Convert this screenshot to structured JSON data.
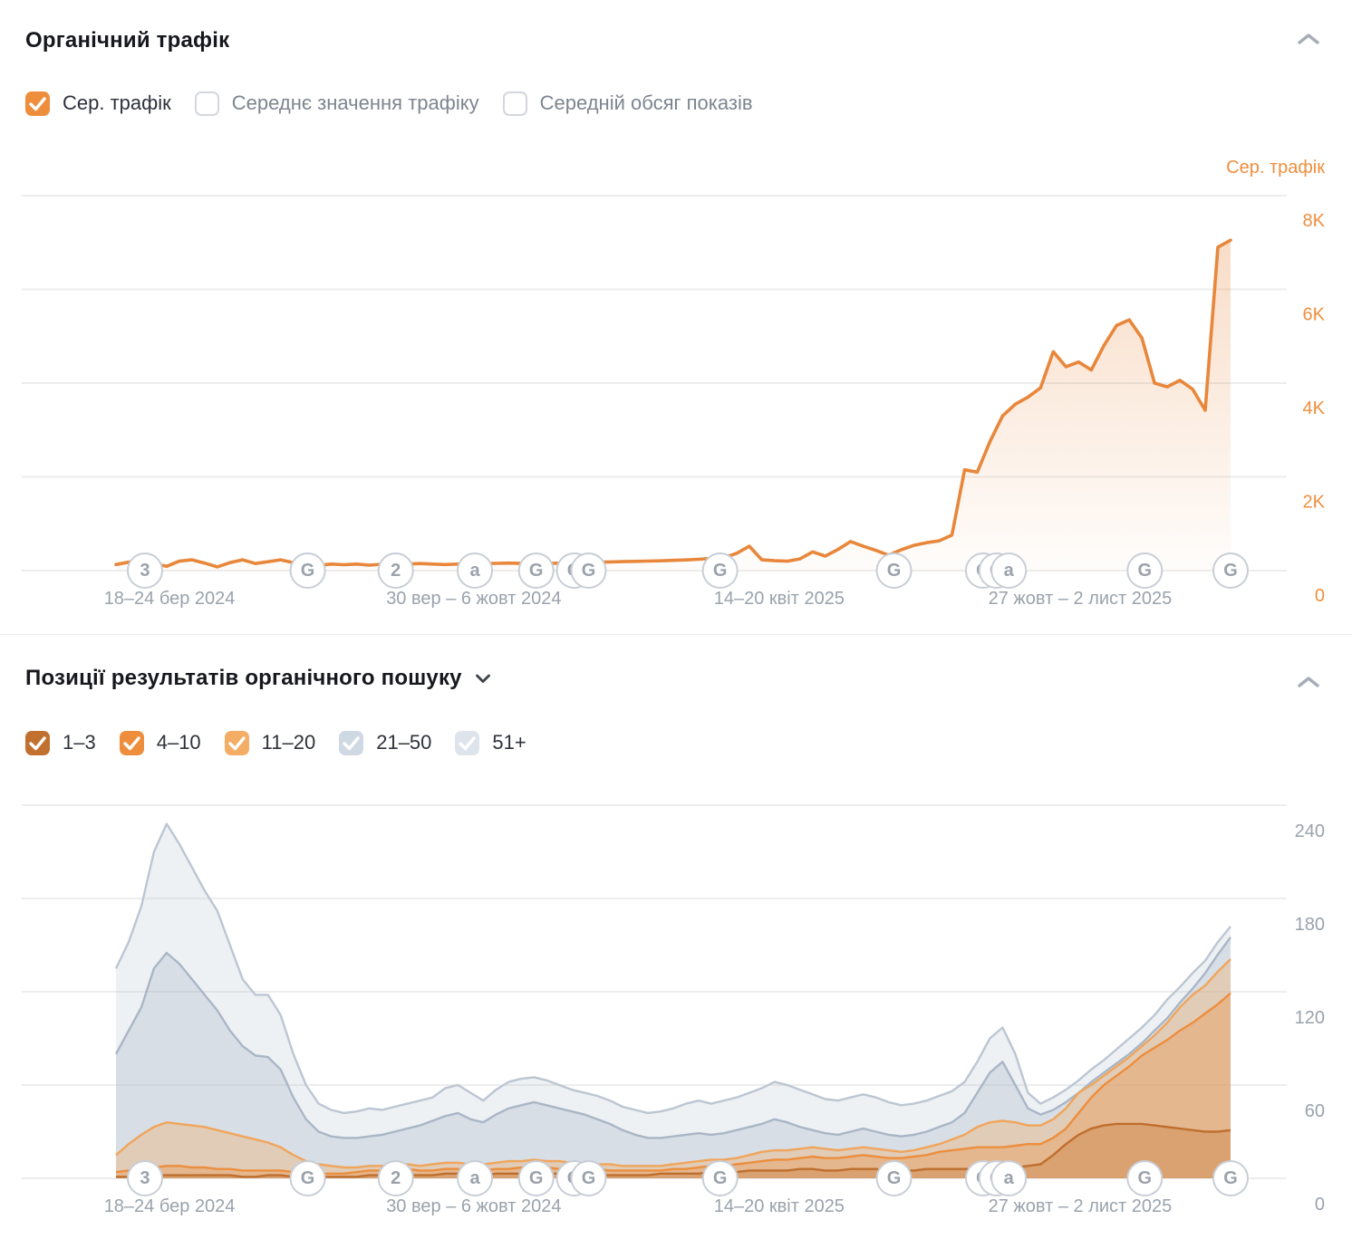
{
  "traffic_panel": {
    "title": "Органічний трафік",
    "axis_title": "Сер. трафік",
    "legend": [
      {
        "label": "Сер. трафік",
        "checked": true,
        "color": "#ee8e3d"
      },
      {
        "label": "Середнє значення трафіку",
        "checked": false
      },
      {
        "label": "Середній обсяг показів",
        "checked": false
      }
    ]
  },
  "positions_panel": {
    "title": "Позиції результатів органічного пошуку",
    "legend": [
      {
        "label": "1–3",
        "checked": true,
        "color": "#c1702f"
      },
      {
        "label": "4–10",
        "checked": true,
        "color": "#ee8e3d"
      },
      {
        "label": "11–20",
        "checked": true,
        "color": "#f4ad64"
      },
      {
        "label": "21–50",
        "checked": true,
        "color": "#cfd9e4"
      },
      {
        "label": "51+",
        "checked": true,
        "color": "#dee4ec"
      }
    ]
  },
  "markers": [
    {
      "f": 0.026,
      "t": "3"
    },
    {
      "f": 0.172,
      "t": "G"
    },
    {
      "f": 0.251,
      "t": "2"
    },
    {
      "f": 0.322,
      "t": "a"
    },
    {
      "f": 0.377,
      "t": "G"
    },
    {
      "f": 0.411,
      "t": "G"
    },
    {
      "f": 0.424,
      "t": "G"
    },
    {
      "f": 0.542,
      "t": "G"
    },
    {
      "f": 0.698,
      "t": "G"
    },
    {
      "f": 0.778,
      "t": "G"
    },
    {
      "f": 0.79,
      "t": "G"
    },
    {
      "f": 0.801,
      "t": "a"
    },
    {
      "f": 0.923,
      "t": "G"
    },
    {
      "f": 1.0,
      "t": "G"
    }
  ],
  "chart_data": [
    {
      "id": "organic-traffic",
      "type": "area",
      "title": "Органічний трафік",
      "ylabel": "Сер. трафік",
      "y_ticks": [
        "8K",
        "6K",
        "4K",
        "2K",
        "0"
      ],
      "ylim": [
        0,
        8000
      ],
      "grid": true,
      "x_labels": [
        {
          "f": 0.048,
          "t": "18–24 бер 2024"
        },
        {
          "f": 0.321,
          "t": "30 вер – 6 жовт 2024"
        },
        {
          "f": 0.595,
          "t": "14–20 квіт 2025"
        },
        {
          "f": 0.865,
          "t": "27 жовт – 2 лист 2025"
        }
      ],
      "series": [
        {
          "name": "Сер. трафік",
          "color": "#e8873b",
          "values": [
            130,
            180,
            220,
            150,
            90,
            200,
            230,
            160,
            80,
            170,
            230,
            150,
            190,
            230,
            170,
            120,
            110,
            140,
            125,
            140,
            115,
            135,
            120,
            140,
            150,
            140,
            130,
            140,
            155,
            148,
            155,
            160,
            152,
            165,
            152,
            158,
            165,
            172,
            178,
            186,
            192,
            198,
            202,
            208,
            218,
            228,
            242,
            260,
            275,
            370,
            520,
            230,
            210,
            200,
            250,
            400,
            310,
            450,
            620,
            520,
            430,
            330,
            445,
            540,
            595,
            635,
            760,
            2150,
            2100,
            2750,
            3300,
            3550,
            3700,
            3900,
            4670,
            4350,
            4450,
            4280,
            4800,
            5230,
            5350,
            4960,
            4000,
            3920,
            4060,
            3870,
            3420,
            6900,
            7050
          ]
        }
      ]
    },
    {
      "id": "organic-positions",
      "type": "stacked-area",
      "title": "Позиції результатів органічного пошуку",
      "y_ticks": [
        "240",
        "180",
        "120",
        "60",
        "0"
      ],
      "ylim": [
        0,
        240
      ],
      "grid": true,
      "values_are_cumulative": true,
      "x_labels": [
        {
          "f": 0.048,
          "t": "18–24 бер 2024"
        },
        {
          "f": 0.321,
          "t": "30 вер – 6 жовт 2024"
        },
        {
          "f": 0.595,
          "t": "14–20 квіт 2025"
        },
        {
          "f": 0.865,
          "t": "27 жовт – 2 лист 2025"
        }
      ],
      "series": [
        {
          "name": "51+",
          "line": "#bcc6d3",
          "fill": "rgba(176,189,205,0.22)",
          "values": [
            135,
            152,
            175,
            210,
            228,
            215,
            200,
            185,
            172,
            150,
            128,
            118,
            118,
            105,
            80,
            60,
            48,
            44,
            42,
            43,
            45,
            44,
            46,
            48,
            50,
            52,
            58,
            60,
            55,
            50,
            57,
            62,
            64,
            65,
            63,
            60,
            57,
            55,
            53,
            50,
            46,
            44,
            42,
            43,
            45,
            48,
            50,
            48,
            50,
            52,
            55,
            58,
            62,
            60,
            57,
            54,
            51,
            50,
            52,
            54,
            52,
            49,
            47,
            48,
            50,
            53,
            56,
            62,
            75,
            90,
            97,
            80,
            55,
            48,
            52,
            57,
            63,
            70,
            76,
            83,
            90,
            97,
            105,
            115,
            123,
            132,
            140,
            152,
            162
          ]
        },
        {
          "name": "21–50",
          "line": "#a9b6c6",
          "fill": "rgba(150,166,186,0.25)",
          "values": [
            80,
            95,
            110,
            135,
            145,
            138,
            128,
            118,
            108,
            95,
            85,
            79,
            78,
            70,
            52,
            38,
            30,
            27,
            26,
            26,
            27,
            28,
            30,
            32,
            34,
            37,
            40,
            42,
            38,
            36,
            41,
            45,
            47,
            49,
            47,
            45,
            43,
            41,
            38,
            35,
            31,
            28,
            26,
            26,
            27,
            28,
            29,
            28,
            29,
            31,
            33,
            35,
            38,
            36,
            33,
            31,
            29,
            28,
            30,
            32,
            30,
            28,
            27,
            28,
            30,
            33,
            36,
            42,
            55,
            68,
            75,
            60,
            45,
            41,
            44,
            49,
            55,
            62,
            68,
            74,
            80,
            87,
            95,
            103,
            113,
            122,
            132,
            144,
            155
          ]
        },
        {
          "name": "11–20",
          "line": "#f0a55b",
          "fill": "rgba(243,171,98,0.35)",
          "values": [
            15,
            22,
            28,
            33,
            36,
            35,
            34,
            33,
            31,
            29,
            27,
            25,
            23,
            20,
            15,
            11,
            9,
            8,
            7,
            7,
            8,
            8,
            9,
            9,
            8,
            9,
            10,
            10,
            9,
            9,
            10,
            11,
            11,
            12,
            11,
            11,
            10,
            10,
            9,
            9,
            8,
            8,
            8,
            8,
            9,
            10,
            11,
            12,
            12,
            13,
            15,
            17,
            18,
            18,
            19,
            20,
            19,
            18,
            19,
            20,
            19,
            18,
            17,
            18,
            20,
            22,
            25,
            28,
            33,
            36,
            37,
            36,
            34,
            34,
            38,
            45,
            55,
            60,
            66,
            72,
            78,
            85,
            92,
            100,
            110,
            118,
            124,
            133,
            141
          ]
        },
        {
          "name": "4–10",
          "line": "#ec8e3d",
          "fill": "rgba(238,141,60,0.33)",
          "values": [
            4,
            5,
            6,
            7,
            8,
            8,
            7,
            7,
            6,
            6,
            5,
            5,
            5,
            5,
            4,
            4,
            3,
            3,
            3,
            4,
            5,
            5,
            6,
            6,
            5,
            5,
            6,
            6,
            5,
            5,
            6,
            6,
            7,
            7,
            7,
            6,
            6,
            6,
            6,
            5,
            5,
            5,
            5,
            5,
            6,
            6,
            7,
            8,
            8,
            9,
            10,
            11,
            12,
            12,
            13,
            14,
            13,
            13,
            14,
            15,
            14,
            13,
            13,
            14,
            15,
            17,
            18,
            19,
            20,
            20,
            20,
            21,
            22,
            22,
            26,
            32,
            42,
            52,
            60,
            66,
            72,
            79,
            84,
            89,
            95,
            100,
            106,
            112,
            119
          ]
        },
        {
          "name": "1–3",
          "line": "#bf6f2d",
          "fill": "rgba(192,111,45,0.30)",
          "values": [
            1,
            1,
            2,
            2,
            2,
            2,
            2,
            2,
            2,
            2,
            1,
            1,
            2,
            2,
            1,
            1,
            1,
            1,
            1,
            1,
            2,
            2,
            2,
            2,
            2,
            2,
            3,
            3,
            2,
            2,
            3,
            3,
            3,
            3,
            3,
            3,
            3,
            3,
            2,
            2,
            2,
            2,
            2,
            3,
            3,
            3,
            3,
            4,
            4,
            4,
            5,
            5,
            5,
            5,
            6,
            6,
            5,
            5,
            6,
            6,
            6,
            5,
            5,
            5,
            6,
            6,
            6,
            6,
            6,
            6,
            6,
            7,
            8,
            9,
            15,
            22,
            28,
            32,
            34,
            35,
            35,
            35,
            34,
            33,
            32,
            31,
            30,
            30,
            31
          ]
        }
      ]
    }
  ]
}
